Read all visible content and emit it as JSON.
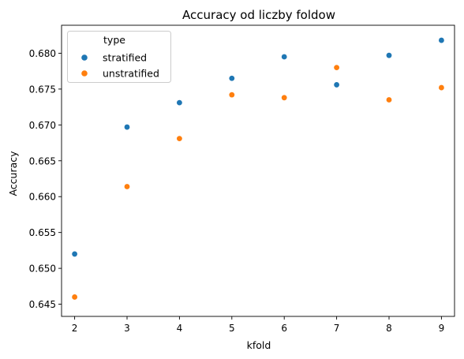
{
  "chart_data": {
    "type": "scatter",
    "title": "Accuracy od liczby foldow",
    "xlabel": "kfold",
    "ylabel": "Accuracy",
    "xlim": [
      1.75,
      9.25
    ],
    "ylim": [
      0.6433,
      0.6839
    ],
    "x_ticks": [
      2,
      3,
      4,
      5,
      6,
      7,
      8,
      9
    ],
    "y_ticks": [
      0.645,
      0.65,
      0.655,
      0.66,
      0.665,
      0.67,
      0.675,
      0.68
    ],
    "y_tick_labels": [
      "0.645",
      "0.650",
      "0.655",
      "0.660",
      "0.665",
      "0.670",
      "0.675",
      "0.680"
    ],
    "x_tick_labels": [
      "2",
      "3",
      "4",
      "5",
      "6",
      "7",
      "8",
      "9"
    ],
    "grid": false,
    "legend": {
      "title": "type",
      "placement": "top-left"
    },
    "series": [
      {
        "name": "stratified",
        "color": "#1f77b4",
        "x": [
          2,
          3,
          4,
          5,
          6,
          7,
          8,
          9
        ],
        "y": [
          0.652,
          0.6697,
          0.6731,
          0.6765,
          0.6795,
          0.6756,
          0.6797,
          0.6818
        ]
      },
      {
        "name": "unstratified",
        "color": "#ff7f0e",
        "x": [
          2,
          3,
          4,
          5,
          6,
          7,
          8,
          9
        ],
        "y": [
          0.646,
          0.6614,
          0.6681,
          0.6742,
          0.6738,
          0.678,
          0.6735,
          0.6752
        ]
      }
    ]
  }
}
